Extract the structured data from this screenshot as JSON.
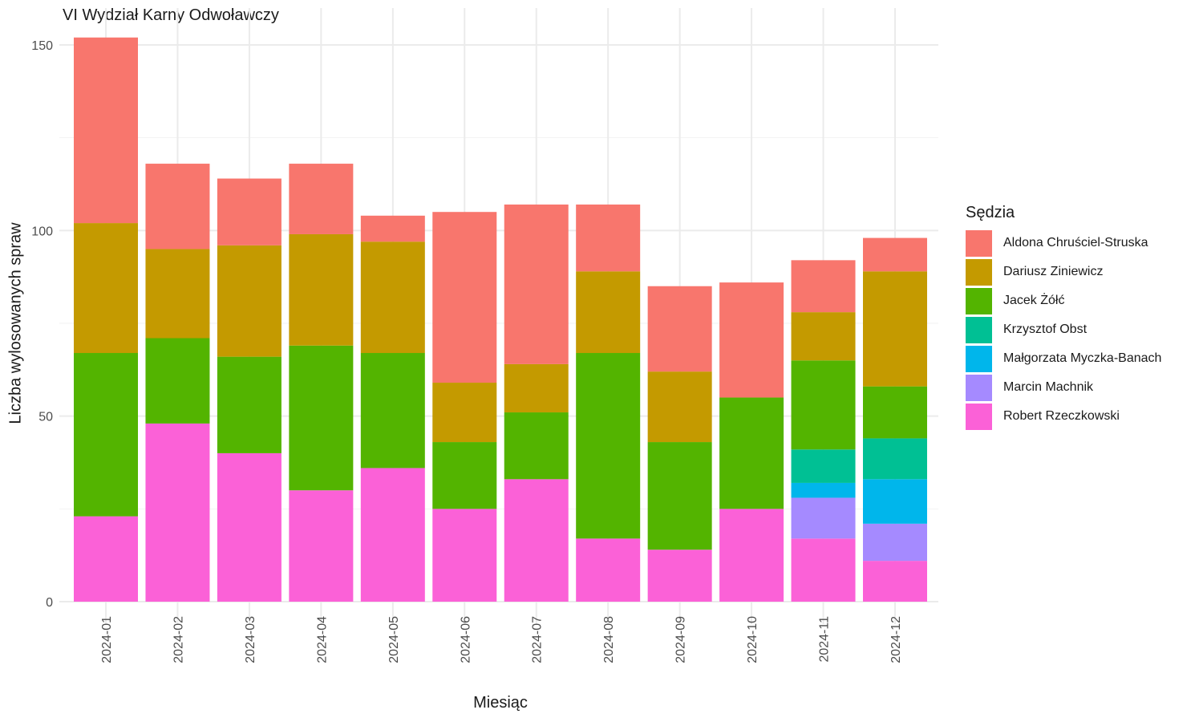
{
  "chart_data": {
    "type": "bar",
    "stacked": true,
    "title": "VI Wydział Karny Odwoławczy",
    "xlabel": "Miesiąc",
    "ylabel": "Liczba wylosowanych spraw",
    "ylim": [
      0,
      158
    ],
    "yticks": [
      0,
      50,
      100,
      150
    ],
    "grid": true,
    "legend_position": "right",
    "legend_title": "Sędzia",
    "categories": [
      "2024-01",
      "2024-02",
      "2024-03",
      "2024-04",
      "2024-05",
      "2024-06",
      "2024-07",
      "2024-08",
      "2024-09",
      "2024-10",
      "2024-11",
      "2024-12"
    ],
    "series": [
      {
        "name": "Robert Rzeczkowski",
        "color": "#FB61D7",
        "values": [
          23,
          48,
          40,
          30,
          36,
          25,
          33,
          17,
          14,
          25,
          17,
          11
        ]
      },
      {
        "name": "Marcin Machnik",
        "color": "#A58AFF",
        "values": [
          0,
          0,
          0,
          0,
          0,
          0,
          0,
          0,
          0,
          0,
          11,
          10
        ]
      },
      {
        "name": "Małgorzata Myczka-Banach",
        "color": "#00B6EB",
        "values": [
          0,
          0,
          0,
          0,
          0,
          0,
          0,
          0,
          0,
          0,
          4,
          12
        ]
      },
      {
        "name": "Krzysztof Obst",
        "color": "#00C094",
        "values": [
          0,
          0,
          0,
          0,
          0,
          0,
          0,
          0,
          0,
          0,
          9,
          11
        ]
      },
      {
        "name": "Jacek Żółć",
        "color": "#53B400",
        "values": [
          44,
          23,
          26,
          39,
          31,
          18,
          18,
          50,
          29,
          30,
          24,
          14
        ]
      },
      {
        "name": "Dariusz Ziniewicz",
        "color": "#C49A00",
        "values": [
          35,
          24,
          30,
          30,
          30,
          16,
          13,
          22,
          19,
          0,
          13,
          31
        ]
      },
      {
        "name": "Aldona Chruściel-Struska",
        "color": "#F8766D",
        "values": [
          50,
          23,
          18,
          19,
          7,
          46,
          43,
          18,
          23,
          31,
          14,
          9
        ]
      }
    ],
    "legend_order": [
      "Aldona Chruściel-Struska",
      "Dariusz Ziniewicz",
      "Jacek Żółć",
      "Krzysztof Obst",
      "Małgorzata Myczka-Banach",
      "Marcin Machnik",
      "Robert Rzeczkowski"
    ]
  }
}
